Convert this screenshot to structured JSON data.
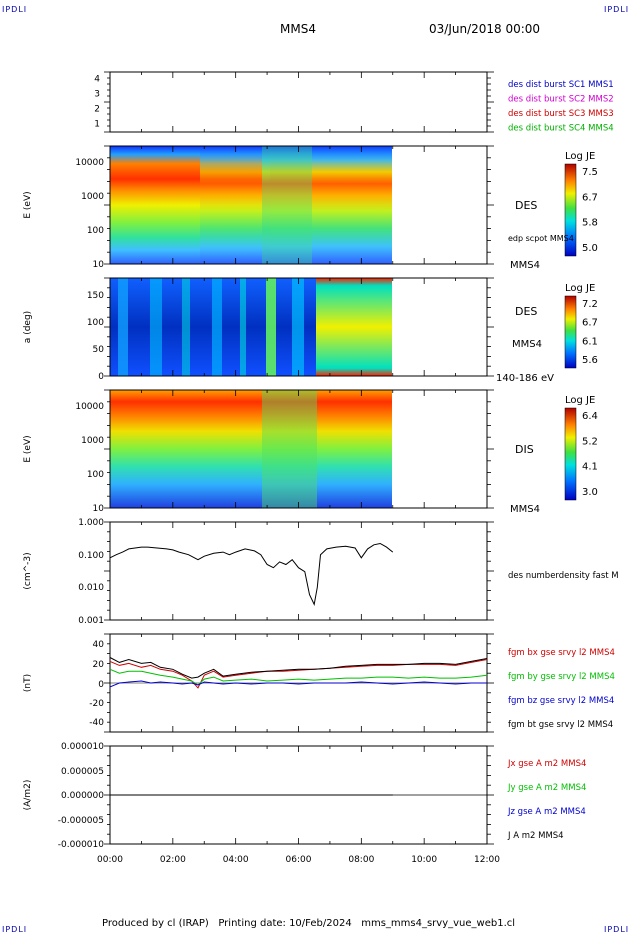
{
  "header": {
    "corner_label": "IPDLI",
    "spacecraft": "MMS4",
    "datetime": "03/Jun/2018 00:00"
  },
  "footer": {
    "text": "Produced by cl (IRAP)   Printing date: 10/Feb/2024   mms_mms4_srvy_vue_web1.cl"
  },
  "colors": {
    "mms1": "#0000c8",
    "mms2": "#d000d0",
    "mms3": "#d00000",
    "mms4": "#00b000",
    "bx": "#d00000",
    "by": "#00c000",
    "bz": "#0000d0",
    "bt": "#000000"
  },
  "time_axis": {
    "ticks": [
      "00:00",
      "02:00",
      "04:00",
      "06:00",
      "08:00",
      "10:00",
      "12:00"
    ],
    "range_hours": [
      0,
      12
    ],
    "data_end_hours": 9.0
  },
  "panels": {
    "orbit": {
      "ticks": [
        "1",
        "2",
        "3",
        "4"
      ],
      "legend": [
        {
          "text": "des dist burst SC1 MMS1",
          "color_key": "mms1"
        },
        {
          "text": "des dist burst SC2 MMS2",
          "color_key": "mms2"
        },
        {
          "text": "des dist burst SC3 MMS3",
          "color_key": "mms3"
        },
        {
          "text": "des dist burst SC4 MMS4",
          "color_key": "mms4"
        }
      ]
    },
    "des_energy": {
      "ylabel": "E (eV)",
      "ticks": [
        "10",
        "100",
        "1000",
        "10000"
      ],
      "label": "DES",
      "sub_label": "edp scpot MMS4",
      "sc": "MMS4",
      "colorbar": {
        "title": "Log JE",
        "ticks": [
          "7.5",
          "6.7",
          "5.8",
          "5.0"
        ]
      }
    },
    "des_pitch": {
      "ylabel": "a (deg)",
      "ticks": [
        "0",
        "50",
        "100",
        "150"
      ],
      "label": "DES",
      "sc": "MMS4",
      "energy_range": "140-186 eV",
      "colorbar": {
        "title": "Log JE",
        "ticks": [
          "7.2",
          "6.7",
          "6.1",
          "5.6"
        ]
      }
    },
    "dis_energy": {
      "ylabel": "E (eV)",
      "ticks": [
        "10",
        "100",
        "1000",
        "10000"
      ],
      "label": "DIS",
      "sc": "MMS4",
      "colorbar": {
        "title": "Log JE",
        "ticks": [
          "6.4",
          "5.2",
          "4.1",
          "3.0"
        ]
      }
    },
    "density": {
      "ylabel": "(cm^-3)",
      "ticks": [
        "0.001",
        "0.010",
        "0.100",
        "1.000"
      ],
      "legend": "des numberdensity fast M"
    },
    "bfield": {
      "ylabel": "(nT)",
      "ticks": [
        "-40",
        "-20",
        "0",
        "20",
        "40"
      ],
      "legend": [
        {
          "text": "fgm bx gse srvy l2 MMS4",
          "color_key": "bx"
        },
        {
          "text": "fgm by gse srvy l2 MMS4",
          "color_key": "by"
        },
        {
          "text": "fgm bz gse srvy l2 MMS4",
          "color_key": "bz"
        },
        {
          "text": "fgm bt gse srvy l2 MMS4",
          "color_key": "bt"
        }
      ]
    },
    "current": {
      "ylabel": "(A/m2)",
      "ticks": [
        "-0.000010",
        "-0.000005",
        "0.000000",
        "0.000005",
        "0.000010"
      ],
      "legend": [
        {
          "text": "Jx gse A m2 MMS4",
          "color_key": "bx"
        },
        {
          "text": "Jy gse A m2 MMS4",
          "color_key": "by"
        },
        {
          "text": "Jz gse A m2 MMS4",
          "color_key": "bz"
        },
        {
          "text": "J A m2 MMS4",
          "color_key": "bt"
        }
      ]
    }
  },
  "chart_data": [
    {
      "type": "line",
      "title": "des numberdensity fast M",
      "ylabel": "(cm^-3)",
      "yscale": "log",
      "ylim": [
        0.001,
        1.0
      ],
      "xlim": [
        0,
        12
      ],
      "x": [
        0.0,
        0.2,
        0.4,
        0.6,
        0.8,
        1.0,
        1.2,
        1.5,
        1.8,
        2.0,
        2.2,
        2.5,
        2.8,
        3.0,
        3.3,
        3.6,
        3.8,
        4.0,
        4.3,
        4.6,
        4.8,
        5.0,
        5.2,
        5.4,
        5.6,
        5.8,
        6.0,
        6.2,
        6.35,
        6.5,
        6.6,
        6.7,
        6.9,
        7.2,
        7.5,
        7.8,
        8.0,
        8.2,
        8.4,
        8.6,
        8.8,
        9.0
      ],
      "series": [
        {
          "values": [
            0.08,
            0.1,
            0.12,
            0.15,
            0.16,
            0.17,
            0.17,
            0.16,
            0.15,
            0.14,
            0.12,
            0.1,
            0.07,
            0.09,
            0.11,
            0.12,
            0.1,
            0.12,
            0.15,
            0.13,
            0.1,
            0.05,
            0.04,
            0.06,
            0.05,
            0.07,
            0.04,
            0.03,
            0.006,
            0.003,
            0.01,
            0.1,
            0.15,
            0.17,
            0.18,
            0.16,
            0.08,
            0.15,
            0.2,
            0.22,
            0.17,
            0.12
          ]
        }
      ]
    },
    {
      "type": "line",
      "ylabel": "(nT)",
      "ylim": [
        -50,
        50
      ],
      "xlim": [
        0,
        12
      ],
      "x": [
        0.0,
        0.3,
        0.6,
        1.0,
        1.3,
        1.6,
        2.0,
        2.3,
        2.6,
        2.8,
        3.0,
        3.3,
        3.6,
        4.0,
        4.5,
        5.0,
        5.5,
        6.0,
        6.5,
        7.0,
        7.5,
        8.0,
        8.5,
        9.0,
        9.5,
        10.0,
        10.5,
        11.0,
        11.5,
        12.0
      ],
      "series": [
        {
          "name": "fgm bx gse srvy l2 MMS4",
          "color_key": "bx",
          "values": [
            22,
            18,
            20,
            16,
            18,
            14,
            12,
            8,
            2,
            -5,
            8,
            12,
            6,
            8,
            10,
            12,
            12,
            13,
            14,
            15,
            16,
            17,
            18,
            18,
            19,
            19,
            19,
            18,
            21,
            24
          ]
        },
        {
          "name": "fgm by gse srvy l2 MMS4",
          "color_key": "by",
          "values": [
            14,
            10,
            12,
            12,
            10,
            8,
            6,
            4,
            2,
            -2,
            4,
            6,
            2,
            3,
            4,
            2,
            3,
            4,
            3,
            4,
            5,
            5,
            6,
            6,
            5,
            6,
            5,
            5,
            6,
            8
          ]
        },
        {
          "name": "fgm bz gse srvy l2 MMS4",
          "color_key": "bz",
          "values": [
            -4,
            0,
            1,
            2,
            0,
            1,
            0,
            -1,
            0,
            -2,
            1,
            0,
            -1,
            0,
            -1,
            0,
            0,
            -1,
            0,
            0,
            0,
            1,
            0,
            -1,
            0,
            1,
            0,
            -1,
            0,
            0
          ]
        },
        {
          "name": "fgm bt gse srvy l2 MMS4",
          "color_key": "bt",
          "values": [
            26,
            21,
            24,
            20,
            21,
            16,
            14,
            9,
            5,
            6,
            10,
            14,
            7,
            9,
            11,
            12,
            13,
            14,
            14,
            15,
            17,
            18,
            19,
            19,
            19,
            20,
            20,
            19,
            22,
            25
          ]
        }
      ]
    },
    {
      "type": "line",
      "ylabel": "(A/m2)",
      "ylim": [
        -1e-05,
        1e-05
      ],
      "xlim": [
        0,
        12
      ],
      "x": [
        0,
        9
      ],
      "series": [
        {
          "name": "J A m2 MMS4",
          "color_key": "bt",
          "values": [
            0.0,
            0.0
          ]
        }
      ]
    }
  ]
}
